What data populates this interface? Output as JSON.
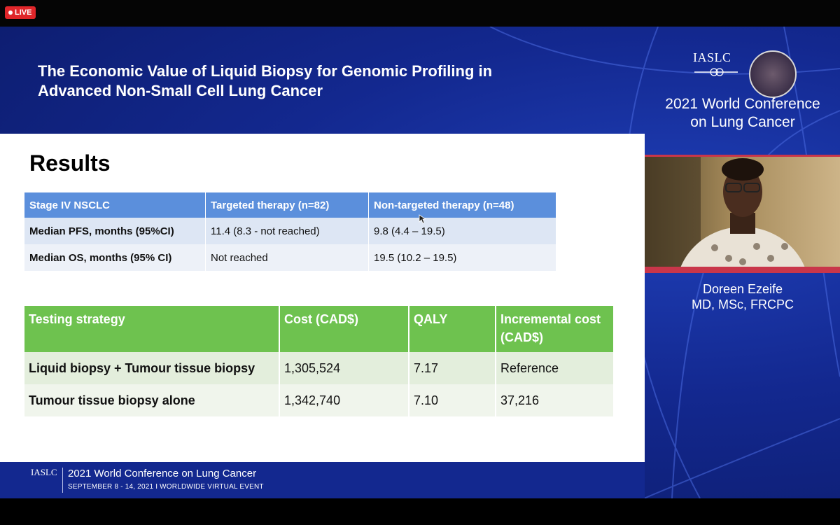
{
  "stream": {
    "live_label": "LIVE"
  },
  "slide": {
    "title_line1": "The Economic Value of Liquid Biopsy for Genomic Profiling in",
    "title_line2": "Advanced Non-Small Cell Lung Cancer",
    "heading": "Results",
    "survival_table": {
      "headers": [
        "Stage IV NSCLC",
        "Targeted therapy (n=82)",
        "Non-targeted therapy (n=48)"
      ],
      "rows": [
        [
          "Median PFS, months (95%CI)",
          "11.4 (8.3 - not reached)",
          "9.8 (4.4 – 19.5)"
        ],
        [
          "Median OS, months (95% CI)",
          "Not reached",
          "19.5 (10.2 – 19.5)"
        ]
      ]
    },
    "cost_table": {
      "headers": [
        "Testing strategy",
        "Cost (CAD$)",
        "QALY",
        "Incremental cost (CAD$)"
      ],
      "rows": [
        [
          "Liquid biopsy + Tumour tissue biopsy",
          "1,305,524",
          "7.17",
          "Reference"
        ],
        [
          "Tumour tissue biopsy alone",
          "1,342,740",
          "7.10",
          "37,216"
        ]
      ]
    }
  },
  "branding": {
    "org": "IASLC",
    "conference_line1": "2021 World Conference",
    "conference_line2": "on Lung Cancer",
    "footer_title": "2021 World Conference on Lung Cancer",
    "footer_subtitle": "SEPTEMBER 8 - 14, 2021 I WORLDWIDE VIRTUAL EVENT"
  },
  "speaker": {
    "name": "Doreen Ezeife",
    "credentials": "MD, MSc, FRCPC"
  },
  "colors": {
    "background_blue": "#13288f",
    "table1_header": "#5b8fdc",
    "table2_header": "#6ec24f",
    "live_red": "#e0262a",
    "speaker_border": "#c9364a"
  }
}
